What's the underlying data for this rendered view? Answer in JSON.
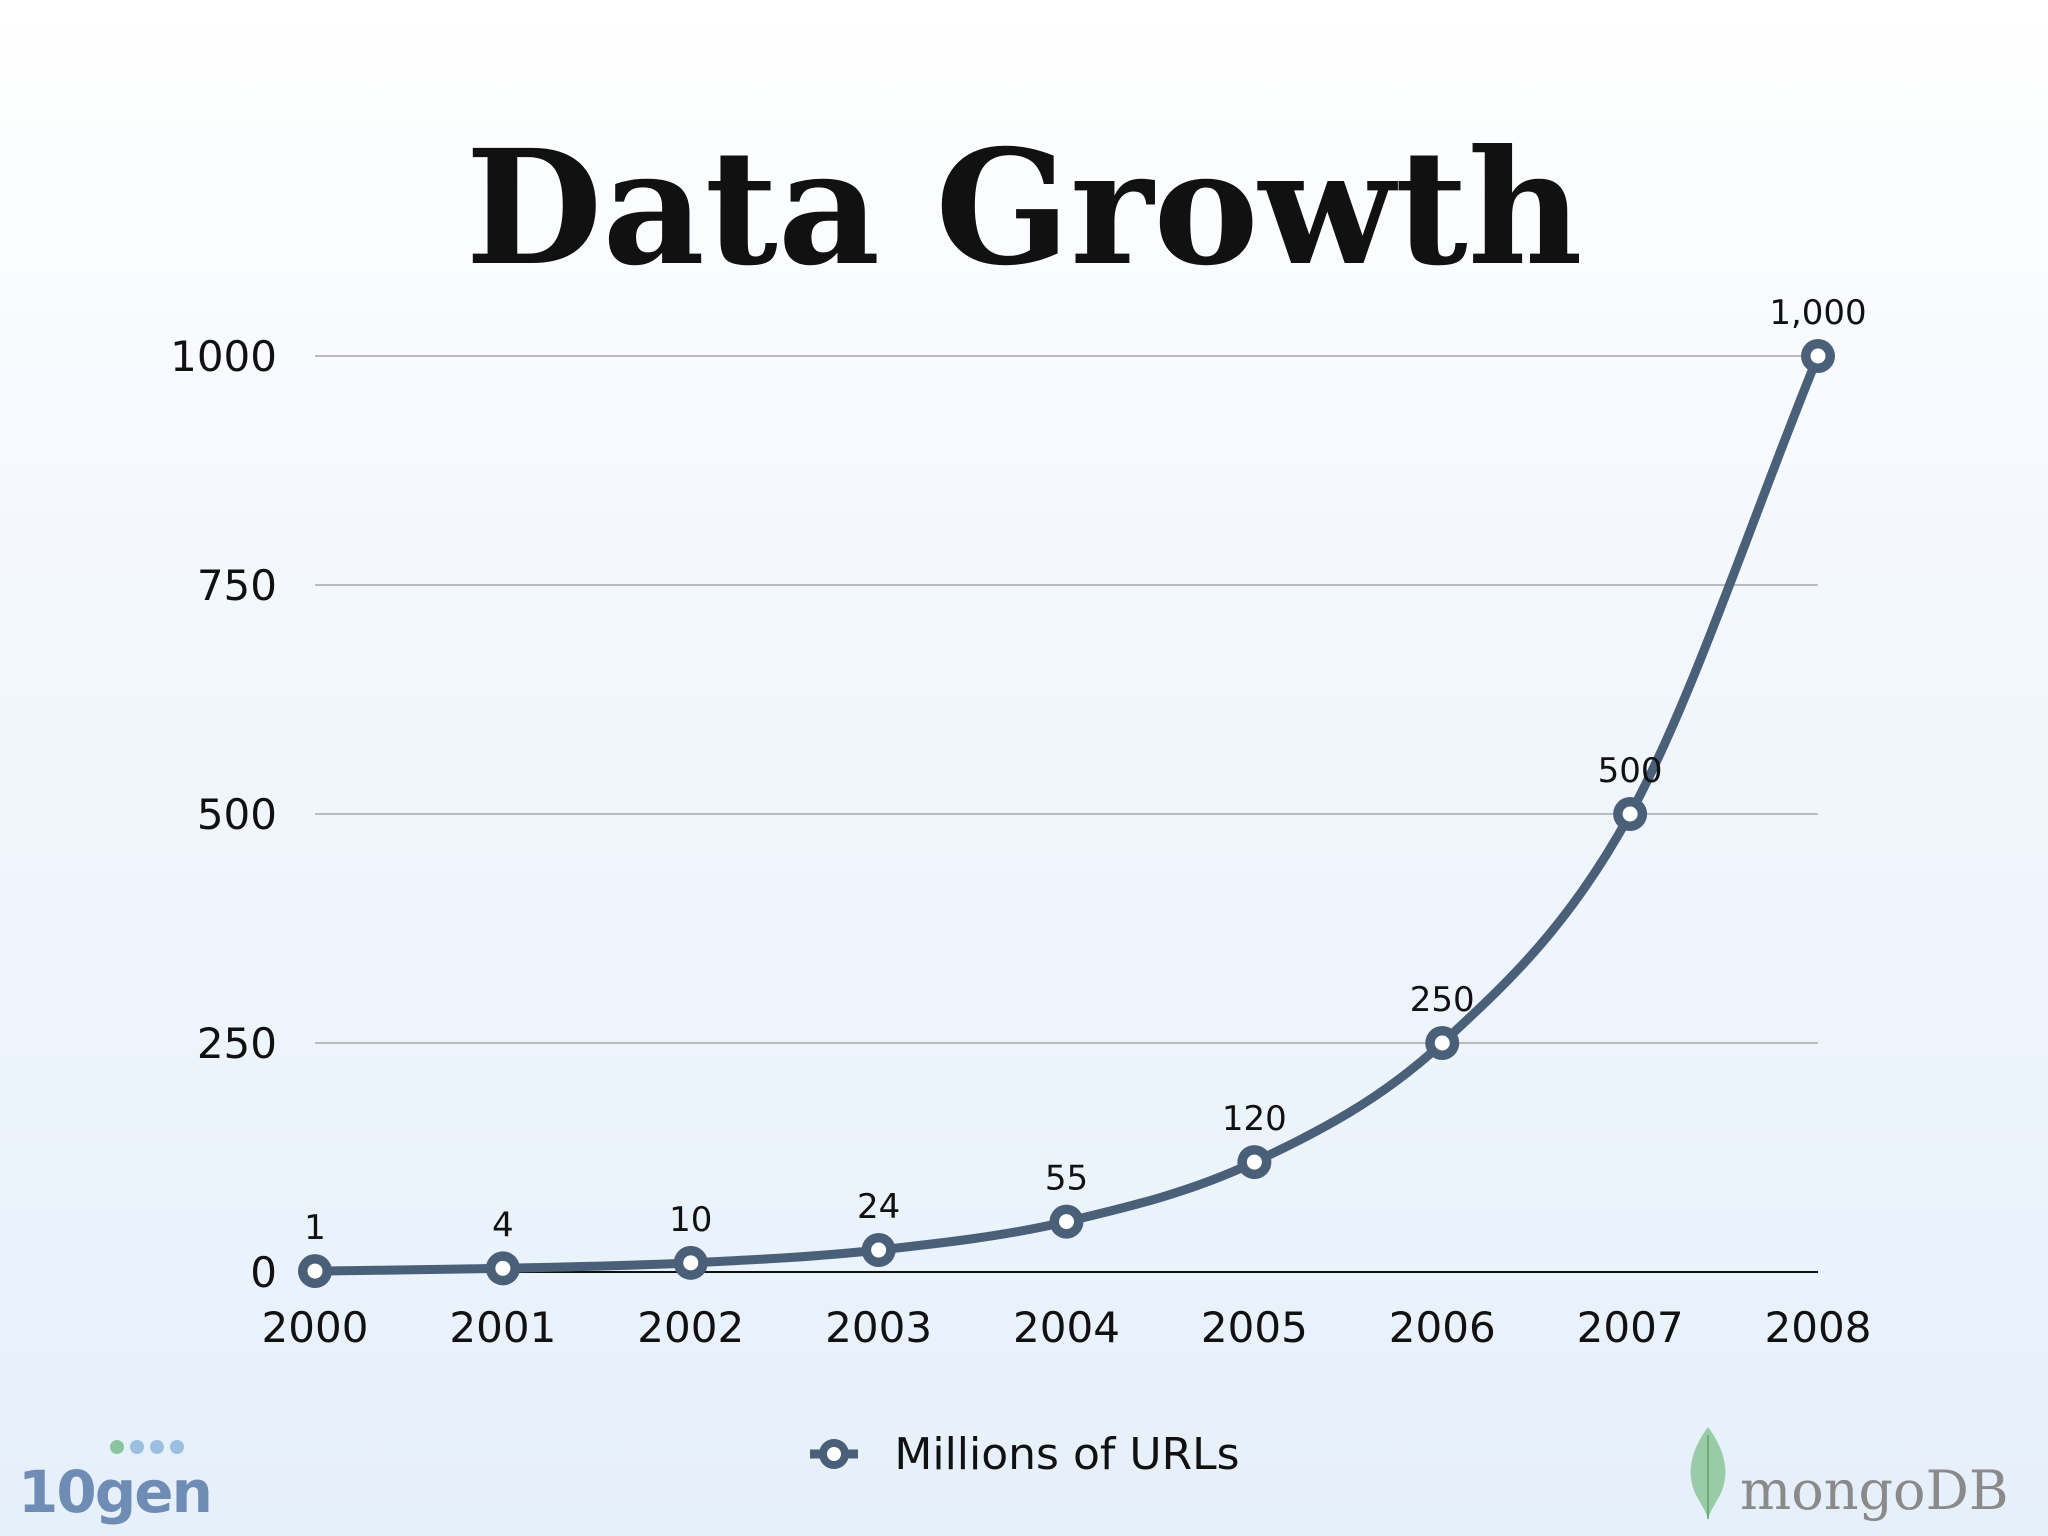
{
  "slide": {
    "title": "Data Growth"
  },
  "legend": {
    "label": "Millions of URLs"
  },
  "logos": {
    "left": "10gen",
    "right": "mongoDB"
  },
  "colors": {
    "series": "#4a5f78",
    "marker_fill": "#ffffff",
    "gridline": "#a8a8a8",
    "logo_10gen": "#6f8cb5",
    "logo_10gen_dots": "#8dc4a0",
    "logo_mongodb_leaf": "#7fbf8a"
  },
  "chart_data": {
    "type": "line",
    "title": "Data Growth",
    "xlabel": "",
    "ylabel": "",
    "x": [
      "2000",
      "2001",
      "2002",
      "2003",
      "2004",
      "2005",
      "2006",
      "2007",
      "2008"
    ],
    "series": [
      {
        "name": "Millions of URLs",
        "values": [
          1,
          4,
          10,
          24,
          55,
          120,
          250,
          500,
          1000
        ],
        "labels": [
          "1",
          "4",
          "10",
          "24",
          "55",
          "120",
          "250",
          "500",
          "1,000"
        ]
      }
    ],
    "ylim": [
      0,
      1000
    ],
    "yticks": [
      0,
      250,
      500,
      750,
      1000
    ],
    "grid": true,
    "smooth": true,
    "legend_position": "bottom"
  }
}
